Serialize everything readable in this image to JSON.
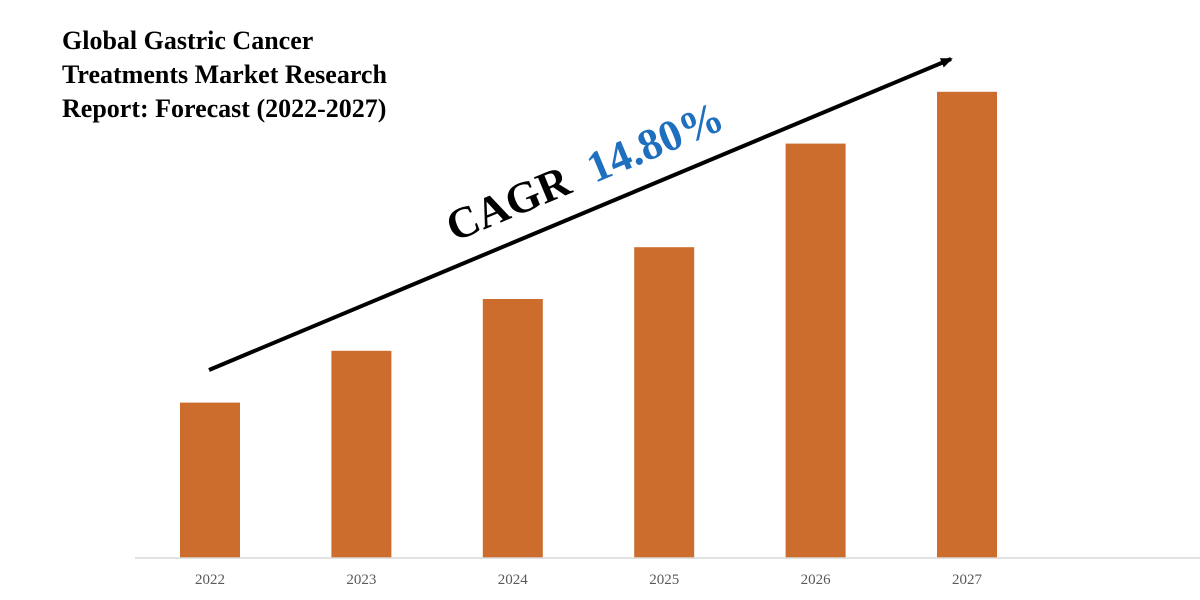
{
  "chart_data": {
    "type": "bar",
    "title_lines": [
      "Global Gastric Cancer",
      "Treatments Market Research",
      "Report: Forecast (2022-2027)"
    ],
    "categories": [
      "2022",
      "2023",
      "2024",
      "2025",
      "2026",
      "2027"
    ],
    "values": [
      30,
      40,
      50,
      60,
      80,
      90
    ],
    "ylim": [
      0,
      100
    ],
    "xlabel": "",
    "ylabel": "",
    "grid": false,
    "legend": "none",
    "bar_color": "#CC6D2E",
    "annotation": {
      "label": "CAGR",
      "value": "14.80%",
      "label_color": "#000000",
      "value_color": "#1F6FBF"
    }
  }
}
